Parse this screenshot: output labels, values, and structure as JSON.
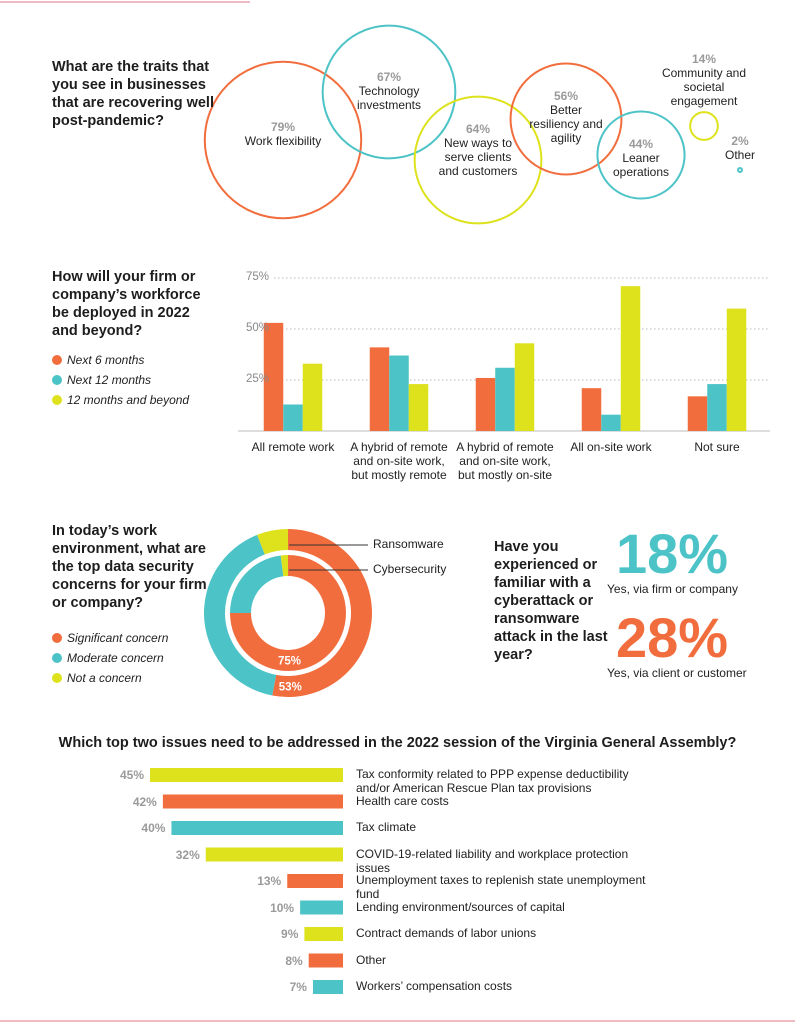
{
  "chart_data": [
    {
      "type": "bubble",
      "title": "What are the traits that you see in businesses that are recovering well post-pandemic?",
      "labels": [
        "Work flexibility",
        "Technology investments",
        "New ways to serve clients and customers",
        "Better resiliency and agility",
        "Leaner operations",
        "Community and societal engagement",
        "Other"
      ],
      "values": [
        79,
        67,
        64,
        56,
        44,
        14,
        2
      ],
      "value_labels": [
        "79%",
        "67%",
        "64%",
        "56%",
        "44%",
        "14%",
        "2%"
      ],
      "colors": [
        "#f26d3d",
        "#4cc3c7",
        "#dde21c",
        "#f26d3d",
        "#4cc3c7",
        "#dde21c",
        "#4cc3c7"
      ]
    },
    {
      "type": "bar",
      "title": "How will your firm or company’s workforce be deployed in 2022 and beyond?",
      "categories": [
        "All remote work",
        "A hybrid of remote and on-site work, but mostly remote",
        "A hybrid of remote and on-site work, but mostly on-site",
        "All on-site work",
        "Not sure"
      ],
      "series": [
        {
          "name": "Next 6 months",
          "color": "#f26d3d",
          "values": [
            53,
            41,
            26,
            21,
            17
          ]
        },
        {
          "name": "Next 12 months",
          "color": "#4cc3c7",
          "values": [
            13,
            37,
            31,
            8,
            23
          ]
        },
        {
          "name": "12 months and beyond",
          "color": "#dde21c",
          "values": [
            33,
            23,
            43,
            71,
            60
          ]
        }
      ],
      "ylim": [
        0,
        75
      ],
      "yticks": [
        {
          "value": 25,
          "label": "25%"
        },
        {
          "value": 50,
          "label": "50%"
        },
        {
          "value": 75,
          "label": "75%"
        }
      ],
      "grid": true
    },
    {
      "type": "donut",
      "title": "In today’s work environment, what are the top data security concerns for your firm or company?",
      "categories": [
        "Significant concern",
        "Moderate concern",
        "Not a concern"
      ],
      "colors": [
        "#f26d3d",
        "#4cc3c7",
        "#dde21c"
      ],
      "series": [
        {
          "name": "Ransomware",
          "values": [
            53,
            41,
            6
          ],
          "value_labels": [
            "53%",
            null,
            null
          ]
        },
        {
          "name": "Cybersecurity",
          "values": [
            75,
            23,
            2
          ],
          "value_labels": [
            "75%",
            null,
            null
          ]
        }
      ]
    },
    {
      "type": "stat",
      "title": "Have you experienced or familiar with a cyberattack or ransomware attack in the last year?",
      "categories": [
        "Yes, via firm or company",
        "Yes, via client or customer"
      ],
      "values": [
        18,
        28
      ],
      "value_labels": [
        "18%",
        "28%"
      ],
      "colors": [
        "#4cc3c7",
        "#f26d3d"
      ]
    },
    {
      "type": "hbar",
      "title": "Which top two issues need to be addressed in the 2022 session of the Virginia General Assembly?",
      "categories": [
        "Tax conformity related to PPP expense deductibility and/or American Rescue Plan tax provisions",
        "Health care costs",
        "Tax climate",
        "COVID-19-related liability and workplace protection issues",
        "Unemployment taxes to replenish state unemployment fund",
        "Lending environment/sources of capital",
        "Contract demands of labor unions",
        "Other",
        "Workers’ compensation costs"
      ],
      "values": [
        45,
        42,
        40,
        32,
        13,
        10,
        9,
        8,
        7
      ],
      "value_labels": [
        "45%",
        "42%",
        "40%",
        "32%",
        "13%",
        "10%",
        "9%",
        "8%",
        "7%"
      ],
      "colors": [
        "#dde21c",
        "#f26d3d",
        "#4cc3c7",
        "#dde21c",
        "#f26d3d",
        "#4cc3c7",
        "#dde21c",
        "#f26d3d",
        "#4cc3c7"
      ],
      "xlim": [
        0,
        45
      ]
    }
  ]
}
